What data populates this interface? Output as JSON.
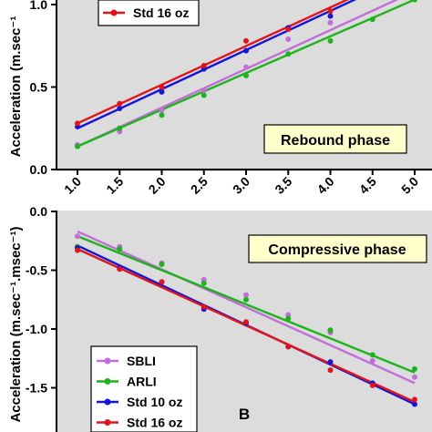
{
  "chart_data": [
    {
      "type": "scatter",
      "panel_label": "",
      "annotation": "Rebound phase",
      "ylabel": "Acceleration (m.sec⁻¹.msec⁻¹)",
      "ylabel_visible": "Acceleration (m.sec⁻¹",
      "xlabel": "",
      "xlim": [
        1.0,
        5.0
      ],
      "ylim": [
        0.0,
        1.1
      ],
      "yticks": [
        "0.0",
        "0.5",
        "1.0"
      ],
      "xticks": [
        "1.0",
        "1.5",
        "2.0",
        "2.5",
        "3.0",
        "3.5",
        "4.0",
        "4.5",
        "5.0"
      ],
      "grid": false,
      "series": [
        {
          "name": "SBLI",
          "color": "#c36dd9",
          "x": [
            1.0,
            1.5,
            2.0,
            2.5,
            3.0,
            3.5,
            4.0,
            4.5,
            5.0
          ],
          "values": [
            0.15,
            0.23,
            0.36,
            0.48,
            0.62,
            0.79,
            0.89,
            1.07,
            1.05
          ],
          "fit": [
            0.14,
            1.08
          ]
        },
        {
          "name": "ARLI",
          "color": "#1db31d",
          "x": [
            1.0,
            1.5,
            2.0,
            2.5,
            3.0,
            3.5,
            4.0,
            4.5,
            5.0
          ],
          "values": [
            0.14,
            0.25,
            0.33,
            0.45,
            0.57,
            0.7,
            0.78,
            0.91,
            1.03
          ],
          "fit": [
            0.14,
            1.03
          ]
        },
        {
          "name": "Std 10 oz",
          "color": "#1515d6",
          "x": [
            1.0,
            1.5,
            2.0,
            2.5,
            3.0,
            3.5,
            4.0,
            4.5
          ],
          "values": [
            0.26,
            0.37,
            0.47,
            0.61,
            0.72,
            0.86,
            0.93,
            1.07
          ],
          "fit": [
            0.25,
            1.08
          ]
        },
        {
          "name": "Std 16 oz",
          "color": "#e0151b",
          "x": [
            1.0,
            1.5,
            2.0,
            2.5,
            3.0,
            3.5,
            4.0,
            4.5
          ],
          "values": [
            0.28,
            0.4,
            0.5,
            0.63,
            0.78,
            0.85,
            0.96,
            1.09
          ],
          "fit": [
            0.28,
            1.1
          ]
        }
      ],
      "legend_visible": [
        "Std 16 oz"
      ],
      "legend_placement": "top-left"
    },
    {
      "type": "scatter",
      "panel_label": "B",
      "annotation": "Compressive phase",
      "ylabel": "Acceleration (m.sec⁻¹.msec⁻¹)",
      "xlabel": "",
      "xlim": [
        1.0,
        5.0
      ],
      "ylim": [
        -1.7,
        0.0
      ],
      "yticks": [
        "0.0",
        "-0.5",
        "-1.0",
        "-1.5"
      ],
      "grid": false,
      "series": [
        {
          "name": "SBLI",
          "color": "#c36dd9",
          "x": [
            1.0,
            1.5,
            2.0,
            2.5,
            3.0,
            3.5,
            4.0,
            4.5,
            5.0
          ],
          "values": [
            -0.21,
            -0.3,
            -0.44,
            -0.58,
            -0.71,
            -0.88,
            -1.03,
            -1.27,
            -1.41
          ],
          "fit": [
            -0.17,
            -1.46
          ]
        },
        {
          "name": "ARLI",
          "color": "#1db31d",
          "x": [
            1.0,
            1.5,
            2.0,
            2.5,
            3.0,
            3.5,
            4.0,
            4.5,
            5.0
          ],
          "values": [
            -0.3,
            -0.32,
            -0.45,
            -0.61,
            -0.75,
            -0.91,
            -1.01,
            -1.22,
            -1.34
          ],
          "fit": [
            -0.21,
            -1.37
          ]
        },
        {
          "name": "Std 10 oz",
          "color": "#1515d6",
          "x": [
            1.0,
            1.5,
            2.0,
            2.5,
            3.0,
            3.5,
            4.0,
            4.5,
            5.0
          ],
          "values": [
            -0.31,
            -0.48,
            -0.6,
            -0.83,
            -0.95,
            -1.15,
            -1.28,
            -1.46,
            -1.64
          ],
          "fit": [
            -0.29,
            -1.64
          ]
        },
        {
          "name": "Std 16 oz",
          "color": "#e0151b",
          "x": [
            1.0,
            1.5,
            2.0,
            2.5,
            3.0,
            3.5,
            4.0,
            4.5,
            5.0
          ],
          "values": [
            -0.33,
            -0.49,
            -0.6,
            -0.81,
            -0.94,
            -1.15,
            -1.35,
            -1.48,
            -1.6
          ],
          "fit": [
            -0.32,
            -1.62
          ]
        }
      ],
      "legend_visible": [
        "SBLI",
        "ARLI",
        "Std 10 oz",
        "Std 16 oz"
      ],
      "legend_placement": "bottom-left"
    }
  ],
  "colors": {
    "plot_background": "#dcdcdc",
    "annotation_background": "#ffffcc"
  }
}
